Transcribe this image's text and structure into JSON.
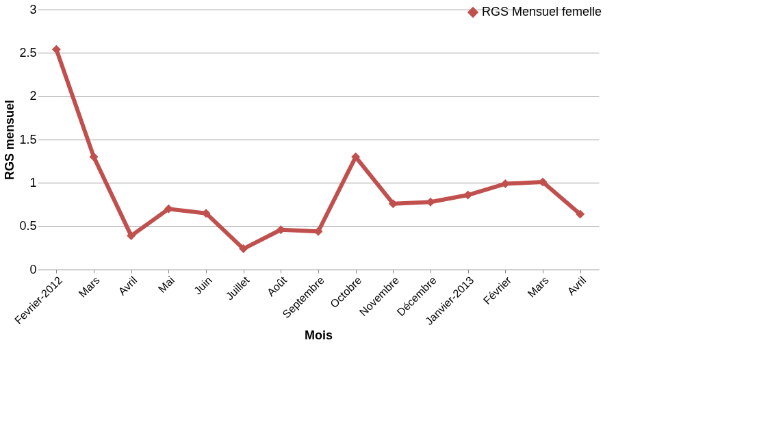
{
  "chart_data": {
    "type": "line",
    "xlabel": "Mois",
    "ylabel": "RGS mensuel",
    "categories": [
      "Fevrier-2012",
      "Mars",
      "Avril",
      "Mai",
      "Juin",
      "Juillet",
      "Août",
      "Septembre",
      "Octobre",
      "Novembre",
      "Décembre",
      "Janvier-2013",
      "Février",
      "Mars",
      "Avril"
    ],
    "series": [
      {
        "name": "RGS Mensuel femelle",
        "color": "#c0504d",
        "values": [
          2.54,
          1.3,
          0.39,
          0.7,
          0.65,
          0.24,
          0.46,
          0.44,
          1.3,
          0.76,
          0.78,
          0.86,
          0.99,
          1.01,
          0.64
        ]
      }
    ],
    "ylim": [
      0,
      3
    ],
    "yticks": [
      0,
      0.5,
      1,
      1.5,
      2,
      2.5,
      3
    ],
    "grid": "y",
    "legend": "top right",
    "marker": "diamond",
    "line_style": "solid"
  }
}
